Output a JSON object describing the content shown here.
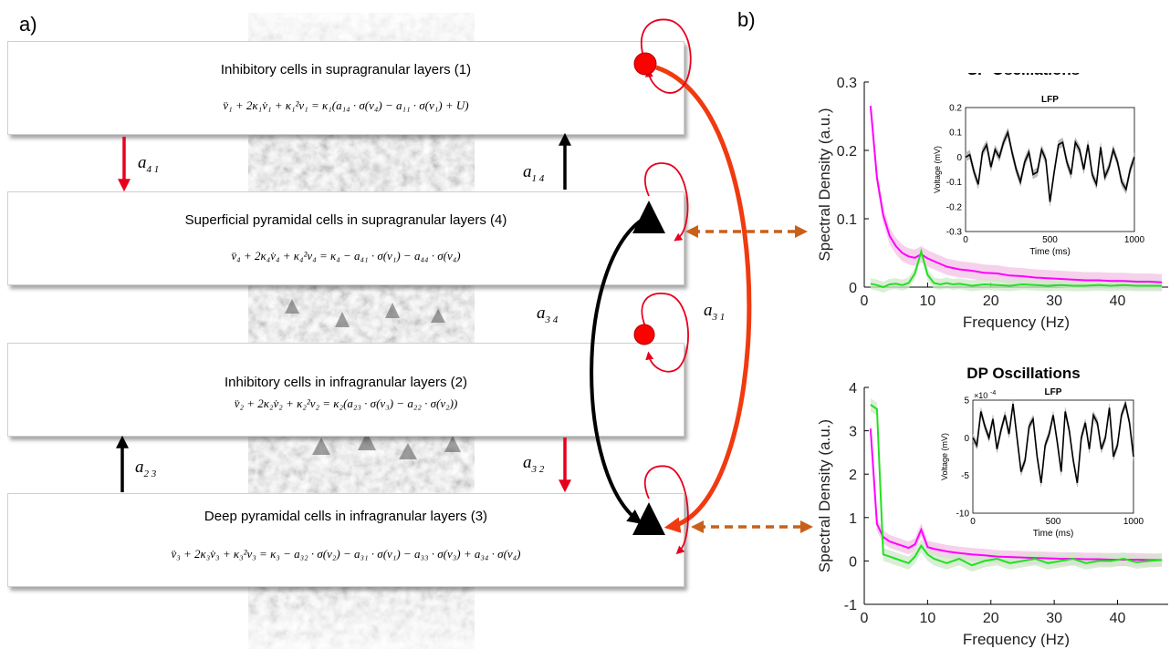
{
  "panel_a_label": "a)",
  "panel_b_label": "b)",
  "layers": [
    {
      "title": "Inhibitory cells in supragranular layers (1)",
      "equation": "v̈₁ + 2κ₁v̇₁ + κ₁²v₁ = κ₁(a₁₄ · σ(v₄) − a₁₁ · σ(v₁) + U)"
    },
    {
      "title": "Superficial pyramidal cells in supragranular  layers (4)",
      "equation": "v̈₄ + 2κ₄v̇₄ + κ₄²v₄ = κ₄   − a₄₁ · σ(v₁) − a₄₄ · σ(v₄)"
    },
    {
      "title": "Inhibitory cells in infragranular layers (2)",
      "equation": "v̈₂ + 2κ₂v̇₂ + κ₂²v₂ = κ₂(a₂₃ · σ(v₃) − a₂₂ · σ(v₂))"
    },
    {
      "title": "Deep pyramidal cells in infragranular  layers (3)",
      "equation": "v̈₃ + 2κ₃v̇₃ + κ₃²v₃ = κ₃   − a₃₂ · σ(v₂) − a₃₁ · σ(v₁) − a₃₃ · σ(v₃) + a₃₄ · σ(v₄)"
    }
  ],
  "weights": {
    "a41": {
      "base": "a",
      "sub": "4 1"
    },
    "a14": {
      "base": "a",
      "sub": "1 4"
    },
    "a34": {
      "base": "a",
      "sub": "3 4"
    },
    "a31": {
      "base": "a",
      "sub": "3 1"
    },
    "a23": {
      "base": "a",
      "sub": "2 3"
    },
    "a32": {
      "base": "a",
      "sub": "3 2"
    }
  },
  "colors": {
    "inhibitory": "#ff0000",
    "excitatory_arrow": "#000000",
    "inhibitory_arrow": "#e8001c",
    "long_range": "#f03a10",
    "pyramidal": "#000000",
    "link": "#c8601a",
    "magenta": "#ff00ff",
    "green": "#22e022",
    "magenta_band": "#f3c2e6",
    "green_band": "#cde8c8"
  },
  "chart_data": [
    {
      "type": "line",
      "title": "SP Oscillations",
      "xlabel": "Frequency (Hz)",
      "ylabel": "Spectral Density (a.u.)",
      "xlim": [
        0,
        48
      ],
      "ylim": [
        0,
        0.3
      ],
      "xticks": [
        0,
        10,
        20,
        30,
        40
      ],
      "yticks": [
        0,
        0.1,
        0.2,
        0.3
      ],
      "ytick_labels": [
        "0",
        "0.1",
        "0.2",
        "0.3"
      ],
      "x": [
        1,
        2,
        3,
        4,
        5,
        6,
        7,
        8,
        9,
        10,
        11,
        12,
        13,
        14,
        15,
        17,
        19,
        21,
        23,
        25,
        27,
        29,
        31,
        33,
        35,
        37,
        39,
        41,
        43,
        45,
        47
      ],
      "series": [
        {
          "color": "magenta",
          "band": 0.012,
          "values": [
            0.265,
            0.16,
            0.105,
            0.075,
            0.06,
            0.05,
            0.045,
            0.043,
            0.048,
            0.042,
            0.038,
            0.034,
            0.03,
            0.028,
            0.026,
            0.024,
            0.021,
            0.02,
            0.017,
            0.016,
            0.014,
            0.013,
            0.012,
            0.011,
            0.01,
            0.01,
            0.009,
            0.009,
            0.008,
            0.008,
            0.007
          ]
        },
        {
          "color": "green",
          "band": 0.008,
          "values": [
            0.005,
            0.003,
            0.0,
            0.004,
            0.005,
            0.003,
            0.006,
            0.02,
            0.052,
            0.018,
            0.006,
            0.004,
            0.006,
            0.004,
            0.005,
            0.002,
            0.004,
            0.003,
            0.002,
            0.004,
            0.003,
            0.002,
            0.003,
            0.002,
            0.002,
            0.003,
            0.002,
            0.003,
            0.002,
            0.002,
            0.002
          ]
        }
      ],
      "inset": {
        "title": "LFP",
        "xlabel": "Time (ms)",
        "ylabel": "Voltage (mV)",
        "xlim": [
          0,
          1000
        ],
        "ylim": [
          -0.3,
          0.2
        ],
        "xticks": [
          0,
          500,
          1000
        ],
        "yticks": [
          -0.3,
          -0.2,
          -0.1,
          0,
          0.1,
          0.2
        ],
        "ytick_labels": [
          "-0.3",
          "-0.2",
          "-0.1",
          "0",
          "0.1",
          "0.2"
        ],
        "x": [
          0,
          25,
          50,
          75,
          100,
          125,
          150,
          175,
          200,
          225,
          250,
          275,
          300,
          325,
          350,
          375,
          400,
          425,
          450,
          475,
          500,
          525,
          550,
          575,
          600,
          625,
          650,
          675,
          700,
          725,
          750,
          775,
          800,
          825,
          850,
          875,
          900,
          925,
          950,
          975,
          1000
        ],
        "values": [
          0.0,
          0.01,
          -0.06,
          -0.11,
          0.02,
          0.05,
          -0.04,
          0.03,
          0.0,
          0.06,
          0.1,
          0.02,
          -0.05,
          -0.1,
          -0.02,
          0.02,
          -0.07,
          -0.06,
          0.03,
          -0.01,
          -0.18,
          -0.06,
          0.05,
          0.06,
          -0.02,
          -0.07,
          0.06,
          0.03,
          -0.05,
          0.05,
          -0.07,
          -0.11,
          0.04,
          -0.08,
          -0.04,
          0.03,
          -0.02,
          -0.1,
          -0.13,
          -0.05,
          0.0
        ]
      }
    },
    {
      "type": "line",
      "title": "DP Oscillations",
      "xlabel": "Frequency (Hz)",
      "ylabel": "Spectral Density (a.u.)",
      "xlim": [
        0,
        48
      ],
      "ylim": [
        -1,
        4
      ],
      "xticks": [
        0,
        10,
        20,
        30,
        40
      ],
      "yticks": [
        -1,
        0,
        1,
        2,
        3,
        4
      ],
      "ytick_labels": [
        "-1",
        "0",
        "1",
        "2",
        "3",
        "4"
      ],
      "x": [
        1,
        2,
        3,
        4,
        5,
        6,
        7,
        8,
        9,
        10,
        11,
        12,
        13,
        14,
        15,
        17,
        19,
        21,
        23,
        25,
        27,
        29,
        31,
        33,
        35,
        37,
        39,
        41,
        43,
        45,
        47
      ],
      "series": [
        {
          "color": "magenta",
          "band": 0.15,
          "values": [
            3.05,
            0.85,
            0.55,
            0.45,
            0.4,
            0.35,
            0.3,
            0.38,
            0.72,
            0.32,
            0.28,
            0.25,
            0.22,
            0.2,
            0.18,
            0.15,
            0.13,
            0.1,
            0.09,
            0.08,
            0.07,
            0.06,
            0.05,
            0.05,
            0.04,
            0.04,
            0.03,
            0.03,
            0.03,
            0.02,
            0.02
          ]
        },
        {
          "color": "green",
          "band": 0.15,
          "values": [
            3.6,
            3.5,
            0.15,
            0.1,
            0.05,
            0.0,
            -0.05,
            0.1,
            0.35,
            0.15,
            0.05,
            0.0,
            -0.05,
            0.0,
            0.05,
            -0.1,
            0.0,
            0.05,
            -0.05,
            0.0,
            0.05,
            -0.05,
            0.0,
            0.05,
            -0.05,
            0.0,
            0.0,
            0.05,
            -0.03,
            0.0,
            0.02
          ]
        }
      ],
      "inset": {
        "title": "LFP",
        "xlabel": "Time (ms)",
        "ylabel": "Voltage (mV)",
        "scale_label": "×10",
        "scale_exponent": "-4",
        "xlim": [
          0,
          1000
        ],
        "ylim": [
          -10,
          5
        ],
        "xticks": [
          0,
          500,
          1000
        ],
        "yticks": [
          -10,
          -5,
          0,
          5
        ],
        "ytick_labels": [
          "-10",
          "-5",
          "0",
          "5"
        ],
        "x": [
          0,
          25,
          50,
          75,
          100,
          125,
          150,
          175,
          200,
          225,
          250,
          275,
          300,
          325,
          350,
          375,
          400,
          425,
          450,
          475,
          500,
          525,
          550,
          575,
          600,
          625,
          650,
          675,
          700,
          725,
          750,
          775,
          800,
          825,
          850,
          875,
          900,
          925,
          950,
          975,
          1000
        ],
        "values": [
          0.0,
          -1.0,
          3.5,
          1.5,
          0.0,
          2.5,
          -1.5,
          1.0,
          3.0,
          0.5,
          4.5,
          0.0,
          -4.5,
          -3.0,
          1.5,
          2.5,
          -2.5,
          -6.0,
          -1.0,
          0.5,
          3.0,
          -0.5,
          -4.5,
          3.5,
          1.0,
          -3.0,
          -6.0,
          0.0,
          2.0,
          -1.5,
          3.0,
          2.0,
          -1.5,
          0.0,
          4.0,
          -2.5,
          -1.0,
          3.0,
          4.5,
          2.0,
          -2.5
        ]
      }
    }
  ]
}
